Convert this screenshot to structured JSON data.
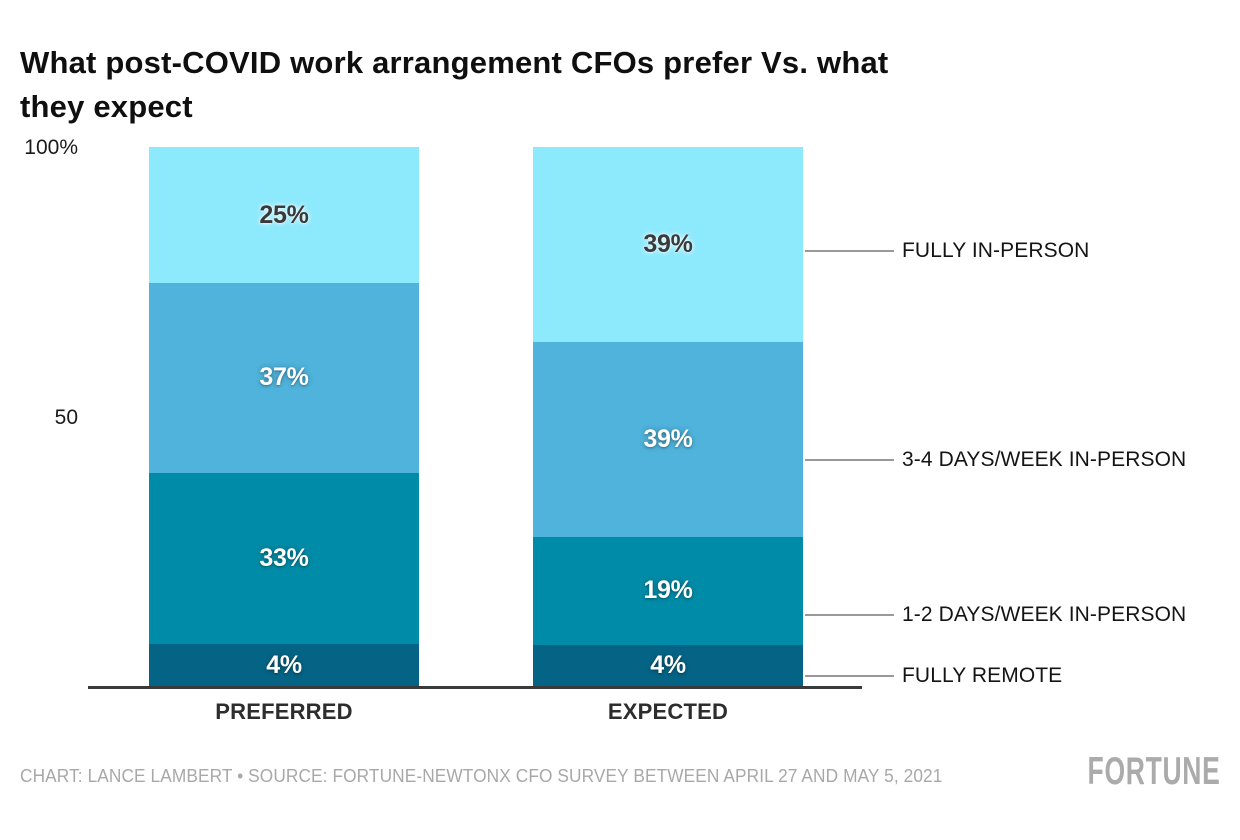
{
  "title": "What post-COVID work arrangement CFOs prefer Vs. what they expect",
  "chart_data": {
    "type": "bar",
    "subtype": "stacked-percentage",
    "unit": "%",
    "categories": [
      "PREFERRED",
      "EXPECTED"
    ],
    "series": [
      {
        "name": "FULLY IN-PERSON",
        "values": [
          25,
          39
        ],
        "color": "#8de9fc",
        "label_color": "dark"
      },
      {
        "name": "3-4 DAYS/WEEK IN-PERSON",
        "values": [
          37,
          39
        ],
        "color": "#4fb3db",
        "label_color": "light"
      },
      {
        "name": "1-2 DAYS/WEEK IN-PERSON",
        "values": [
          33,
          19
        ],
        "color": "#008ca8",
        "label_color": "light"
      },
      {
        "name": "FULLY REMOTE",
        "values": [
          4,
          4
        ],
        "color": "#056486",
        "label_color": "light"
      }
    ],
    "data_labels": {
      "PREFERRED": [
        "25%",
        "37%",
        "33%",
        "4%"
      ],
      "EXPECTED": [
        "39%",
        "39%",
        "19%",
        "4%"
      ]
    },
    "y_axis": {
      "ticks": [
        "100%",
        "50"
      ],
      "min": 0,
      "max": 100,
      "grid": false
    },
    "legend_position": "right-annotations",
    "axis_color": "#3a3a3a",
    "annotation_line_color": "#999999"
  },
  "footer": {
    "credit": "CHART: LANCE LAMBERT • SOURCE: FORTUNE-NEWTONX CFO SURVEY BETWEEN APRIL 27 AND MAY 5, 2021",
    "brand": "FORTUNE"
  }
}
